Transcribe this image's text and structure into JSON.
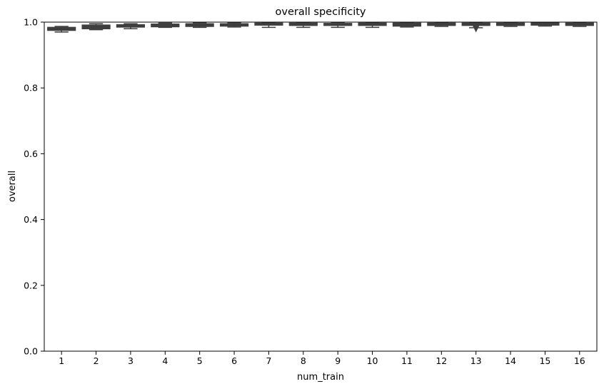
{
  "chart_data": {
    "type": "box",
    "title": "overall specificity",
    "xlabel": "num_train",
    "ylabel": "overall",
    "ylim": [
      0.0,
      1.0
    ],
    "yticks": [
      "0.0",
      "0.2",
      "0.4",
      "0.6",
      "0.8",
      "1.0"
    ],
    "categories": [
      "1",
      "2",
      "3",
      "4",
      "5",
      "6",
      "7",
      "8",
      "9",
      "10",
      "11",
      "12",
      "13",
      "14",
      "15",
      "16"
    ],
    "box_color": "#3f3f3f",
    "grid": false,
    "boxes": [
      {
        "whislo": 0.97,
        "q1": 0.975,
        "med": 0.979,
        "q3": 0.984,
        "whishi": 0.987
      },
      {
        "whislo": 0.977,
        "q1": 0.98,
        "med": 0.985,
        "q3": 0.991,
        "whishi": 0.995
      },
      {
        "whislo": 0.98,
        "q1": 0.985,
        "med": 0.988,
        "q3": 0.992,
        "whishi": 0.995
      },
      {
        "whislo": 0.984,
        "q1": 0.986,
        "med": 0.99,
        "q3": 0.994,
        "whishi": 0.997
      },
      {
        "whislo": 0.984,
        "q1": 0.987,
        "med": 0.991,
        "q3": 0.995,
        "whishi": 0.998
      },
      {
        "whislo": 0.985,
        "q1": 0.988,
        "med": 0.991,
        "q3": 0.995,
        "whishi": 0.998
      },
      {
        "whislo": 0.984,
        "q1": 0.991,
        "med": 0.994,
        "q3": 0.997,
        "whishi": 0.999
      },
      {
        "whislo": 0.984,
        "q1": 0.99,
        "med": 0.994,
        "q3": 0.997,
        "whishi": 0.999
      },
      {
        "whislo": 0.984,
        "q1": 0.99,
        "med": 0.993,
        "q3": 0.996,
        "whishi": 0.999
      },
      {
        "whislo": 0.984,
        "q1": 0.99,
        "med": 0.994,
        "q3": 0.997,
        "whishi": 0.999
      },
      {
        "whislo": 0.985,
        "q1": 0.988,
        "med": 0.993,
        "q3": 0.997,
        "whishi": 0.999
      },
      {
        "whislo": 0.987,
        "q1": 0.99,
        "med": 0.994,
        "q3": 0.997,
        "whishi": 0.999
      },
      {
        "whislo": 0.983,
        "q1": 0.99,
        "med": 0.993,
        "q3": 0.997,
        "whishi": 0.999
      },
      {
        "whislo": 0.987,
        "q1": 0.99,
        "med": 0.994,
        "q3": 0.997,
        "whishi": 0.999
      },
      {
        "whislo": 0.988,
        "q1": 0.991,
        "med": 0.995,
        "q3": 0.998,
        "whishi": 0.999
      },
      {
        "whislo": 0.987,
        "q1": 0.99,
        "med": 0.994,
        "q3": 0.997,
        "whishi": 0.999
      }
    ],
    "fliers": [
      {
        "category": "13",
        "value": 0.98
      }
    ]
  }
}
